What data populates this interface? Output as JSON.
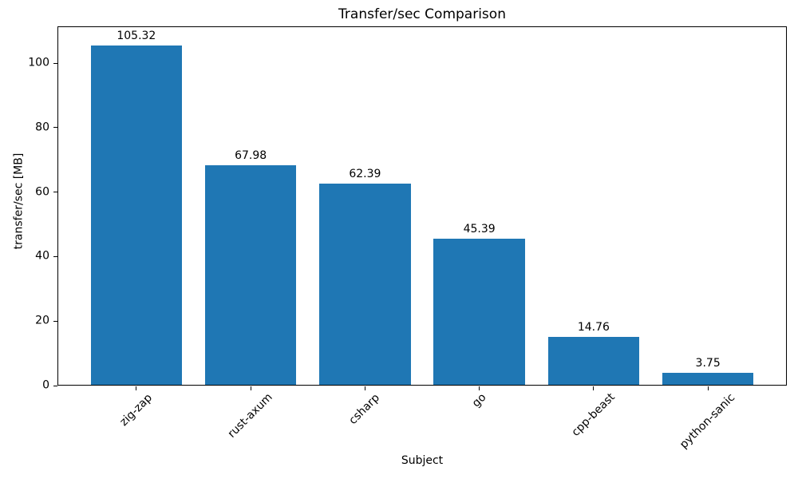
{
  "chart_data": {
    "type": "bar",
    "title": "Transfer/sec Comparison",
    "xlabel": "Subject",
    "ylabel": "transfer/sec [MB]",
    "categories": [
      "zig-zap",
      "rust-axum",
      "csharp",
      "go",
      "cpp-beast",
      "python-sanic"
    ],
    "values": [
      105.32,
      67.98,
      62.39,
      45.39,
      14.76,
      3.75
    ],
    "value_labels": [
      "105.32",
      "67.98",
      "62.39",
      "45.39",
      "14.76",
      "3.75"
    ],
    "yticks": [
      0,
      20,
      40,
      60,
      80,
      100
    ],
    "ylim": [
      0,
      111.4
    ],
    "bar_color": "#1f77b4",
    "axis_color": "#000000",
    "text_color": "#000000",
    "background": "#ffffff",
    "grid": false,
    "legend": "none",
    "x_tick_rotation_deg": 45
  }
}
